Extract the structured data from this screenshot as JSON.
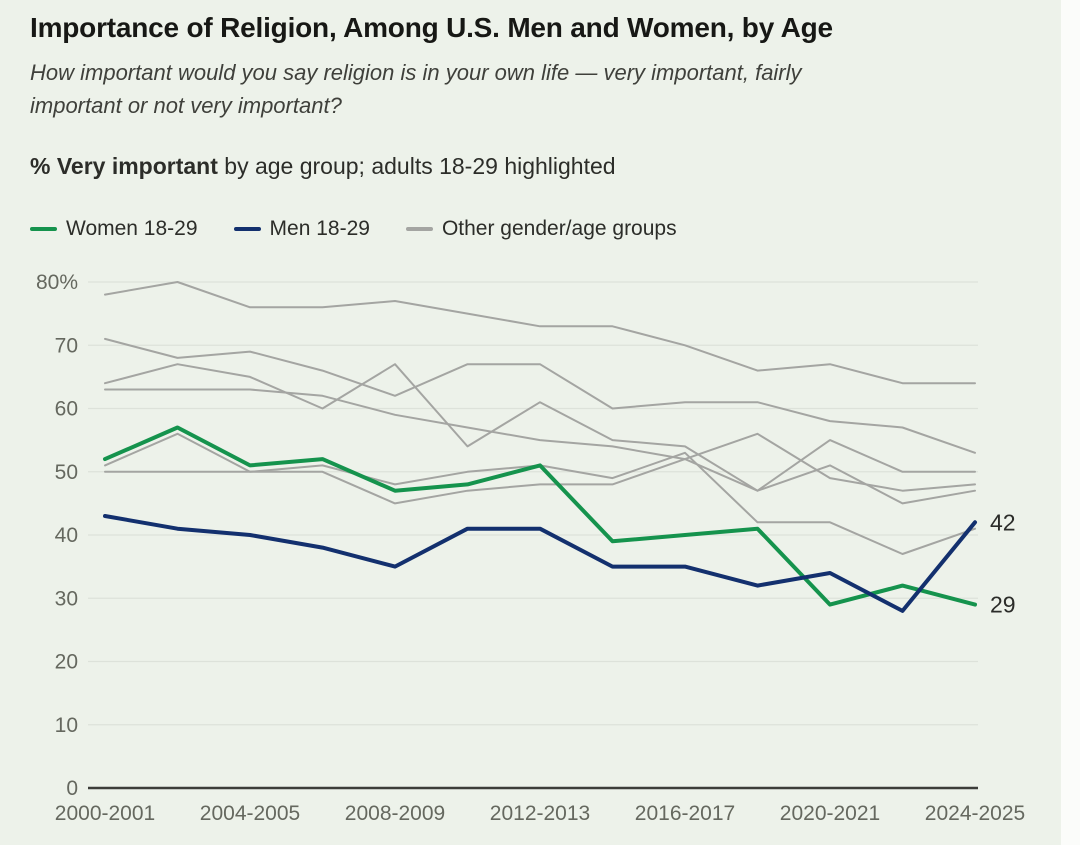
{
  "header": {
    "title": "Importance of Religion, Among U.S. Men and Women, by Age",
    "subtitle_line1": "How important would you say religion is in your own life — very important, fairly",
    "subtitle_line2": "important or not very important?",
    "measure_bold": "% Very important",
    "measure_rest": " by age group; adults 18-29 highlighted"
  },
  "legend": {
    "items": [
      {
        "label": "Women 18-29",
        "color": "#15934d"
      },
      {
        "label": "Men 18-29",
        "color": "#13306e"
      },
      {
        "label": "Other gender/age groups",
        "color": "#a4a5a2"
      }
    ]
  },
  "colors": {
    "background": "#edf2ea",
    "gridline": "#dde2da",
    "zero_axis": "#3c3d39",
    "axis_text": "#65685f",
    "end_label_text": "#2b2c29",
    "women_line": "#15934d",
    "men_line": "#13306e",
    "other_line": "#a4a5a2"
  },
  "chart_data": {
    "type": "line",
    "title": "Importance of Religion, Among U.S. Men and Women, by Age",
    "measure": "% Very important",
    "x_categories": [
      "2000-2001",
      "2002-2003",
      "2004-2005",
      "2006-2007",
      "2008-2009",
      "2010-2011",
      "2012-2013",
      "2014-2015",
      "2016-2017",
      "2018-2019",
      "2020-2021",
      "2022-2023",
      "2024-2025"
    ],
    "x_tick_labels_shown": [
      "2000-2001",
      "2004-2005",
      "2008-2009",
      "2012-2013",
      "2016-2017",
      "2020-2021",
      "2024-2025"
    ],
    "ylim": [
      0,
      80
    ],
    "yticks": [
      80,
      70,
      60,
      50,
      40,
      30,
      20,
      10,
      0
    ],
    "ytick_labels": [
      "80%",
      "70",
      "60",
      "50",
      "40",
      "30",
      "20",
      "10",
      "0"
    ],
    "grid": "horizontal",
    "legend_position": "top",
    "series": [
      {
        "name": "Other gender/age group 1",
        "group": "other",
        "color": "#a4a5a2",
        "width": 2,
        "values": [
          78,
          80,
          76,
          76,
          77,
          75,
          73,
          73,
          70,
          66,
          67,
          64,
          64
        ]
      },
      {
        "name": "Other gender/age group 2",
        "group": "other",
        "color": "#a4a5a2",
        "width": 2,
        "values": [
          71,
          68,
          69,
          66,
          62,
          67,
          67,
          60,
          61,
          61,
          58,
          57,
          53
        ]
      },
      {
        "name": "Other gender/age group 3",
        "group": "other",
        "color": "#a4a5a2",
        "width": 2,
        "values": [
          64,
          67,
          65,
          60,
          67,
          54,
          61,
          55,
          54,
          47,
          55,
          50,
          50
        ]
      },
      {
        "name": "Other gender/age group 4",
        "group": "other",
        "color": "#a4a5a2",
        "width": 2,
        "values": [
          63,
          63,
          63,
          62,
          59,
          57,
          55,
          54,
          52,
          56,
          49,
          47,
          48
        ]
      },
      {
        "name": "Other gender/age group 5",
        "group": "other",
        "color": "#a4a5a2",
        "width": 2,
        "values": [
          51,
          56,
          50,
          51,
          48,
          50,
          51,
          49,
          53,
          42,
          42,
          37,
          41
        ]
      },
      {
        "name": "Other gender/age group 6",
        "group": "other",
        "color": "#a4a5a2",
        "width": 2,
        "values": [
          50,
          50,
          50,
          50,
          45,
          47,
          48,
          48,
          52,
          47,
          51,
          45,
          47
        ]
      },
      {
        "name": "Women 18-29",
        "group": "highlight",
        "color": "#15934d",
        "width": 4,
        "values": [
          52,
          57,
          51,
          52,
          47,
          48,
          51,
          39,
          40,
          41,
          29,
          32,
          29
        ],
        "end_label": "29"
      },
      {
        "name": "Men 18-29",
        "group": "highlight",
        "color": "#13306e",
        "width": 4,
        "values": [
          43,
          41,
          40,
          38,
          35,
          41,
          41,
          35,
          35,
          32,
          34,
          28,
          42
        ],
        "end_label": "42"
      }
    ]
  }
}
